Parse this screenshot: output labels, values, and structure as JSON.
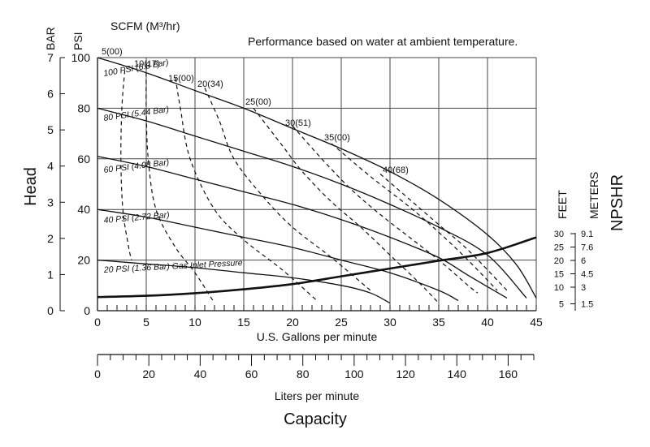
{
  "chart_data": {
    "type": "line",
    "note": "Performance based on water at ambient temperature.",
    "x_axis": {
      "label": "U.S. Gallons per minute",
      "min": 0,
      "max": 45,
      "ticks": [
        "0",
        "5",
        "10",
        "15",
        "20",
        "25",
        "30",
        "35",
        "40",
        "45"
      ],
      "minor_step": 1
    },
    "x2_axis": {
      "label": "Liters per minute",
      "min": 0,
      "max": 170,
      "ticks": [
        "0",
        "20",
        "40",
        "60",
        "80",
        "100",
        "120",
        "140",
        "160"
      ],
      "minor_step": 5
    },
    "capacity_label": "Capacity",
    "y_axis": {
      "label": "Head",
      "psi_title": "PSI",
      "bar_title": "BAR",
      "psi_min": 0,
      "psi_max": 100,
      "psi_ticks": [
        "0",
        "20",
        "40",
        "60",
        "80",
        "100"
      ],
      "bar_ticks": [
        "0",
        "1",
        "2",
        "3",
        "4",
        "5",
        "6",
        "7"
      ]
    },
    "npshr_axis": {
      "label": "NPSHR",
      "feet_title": "FEET",
      "meters_title": "METERS",
      "feet_ticks": [
        "30",
        "25",
        "20",
        "15",
        "10",
        "5"
      ],
      "meters_ticks": [
        "9.1",
        "7.6",
        "6",
        "4.5",
        "3",
        "1.5"
      ]
    },
    "scfm_title": "SCFM (M³/hr)",
    "pressure_curves": [
      {
        "name": "100 PSI (6.8 Bar)",
        "points": [
          [
            0,
            100
          ],
          [
            5,
            94
          ],
          [
            10,
            87
          ],
          [
            15,
            80
          ],
          [
            20,
            72
          ],
          [
            25,
            64
          ],
          [
            30,
            55
          ],
          [
            35,
            44
          ],
          [
            40,
            30
          ],
          [
            43,
            18
          ],
          [
            45,
            5
          ]
        ]
      },
      {
        "name": "80 PSI (5.44 Bar)",
        "points": [
          [
            0,
            80
          ],
          [
            5,
            75
          ],
          [
            10,
            69
          ],
          [
            15,
            63
          ],
          [
            20,
            57
          ],
          [
            25,
            50
          ],
          [
            30,
            42
          ],
          [
            35,
            33
          ],
          [
            40,
            22
          ],
          [
            44,
            5
          ]
        ]
      },
      {
        "name": "60 PSI (4.08 Bar)",
        "points": [
          [
            0,
            61
          ],
          [
            5,
            57
          ],
          [
            10,
            52
          ],
          [
            15,
            47
          ],
          [
            20,
            42
          ],
          [
            25,
            36
          ],
          [
            30,
            29
          ],
          [
            35,
            21
          ],
          [
            38,
            14
          ],
          [
            42,
            5
          ]
        ]
      },
      {
        "name": "40 PSI (2.72 Bar)",
        "points": [
          [
            0,
            40
          ],
          [
            5,
            37
          ],
          [
            10,
            33
          ],
          [
            15,
            29
          ],
          [
            20,
            25
          ],
          [
            25,
            20
          ],
          [
            30,
            15
          ],
          [
            35,
            8
          ],
          [
            37,
            4
          ]
        ]
      },
      {
        "name": "20 PSI (1.36 Bar) Gas Inlet Pressure",
        "points": [
          [
            0,
            20
          ],
          [
            5,
            18.5
          ],
          [
            10,
            17
          ],
          [
            15,
            15
          ],
          [
            20,
            13
          ],
          [
            25,
            10
          ],
          [
            28,
            7
          ],
          [
            30,
            3
          ]
        ]
      }
    ],
    "air_curves": [
      {
        "name": "5(00)",
        "points": [
          [
            2.8,
            95
          ],
          [
            2.5,
            80
          ],
          [
            2.4,
            60
          ],
          [
            2.6,
            40
          ],
          [
            3.2,
            25
          ],
          [
            3.5,
            20
          ]
        ]
      },
      {
        "name": "10(17)",
        "points": [
          [
            5,
            97
          ],
          [
            5,
            80
          ],
          [
            5.2,
            60
          ],
          [
            6,
            40
          ],
          [
            8,
            25
          ],
          [
            10,
            15
          ],
          [
            12,
            3
          ]
        ]
      },
      {
        "name": "15(00)",
        "points": [
          [
            8,
            92
          ],
          [
            8.5,
            80
          ],
          [
            9.5,
            60
          ],
          [
            12,
            40
          ],
          [
            15,
            28
          ],
          [
            19,
            16
          ],
          [
            22.5,
            4
          ]
        ]
      },
      {
        "name": "20(34)",
        "points": [
          [
            11,
            88
          ],
          [
            12.5,
            75
          ],
          [
            14,
            60
          ],
          [
            17,
            45
          ],
          [
            20,
            33
          ],
          [
            24,
            21
          ],
          [
            28,
            8
          ]
        ]
      },
      {
        "name": "25(00)",
        "points": [
          [
            16,
            80
          ],
          [
            19,
            65
          ],
          [
            21,
            55
          ],
          [
            24,
            43
          ],
          [
            27,
            33
          ],
          [
            30,
            22
          ],
          [
            33,
            11
          ],
          [
            35,
            3
          ]
        ]
      },
      {
        "name": "30(51)",
        "points": [
          [
            20,
            73
          ],
          [
            23,
            60
          ],
          [
            26,
            48
          ],
          [
            29,
            38
          ],
          [
            32,
            29
          ],
          [
            35,
            20
          ],
          [
            38,
            10
          ],
          [
            39,
            7
          ]
        ]
      },
      {
        "name": "35(00)",
        "points": [
          [
            24,
            66
          ],
          [
            28,
            53
          ],
          [
            32,
            41
          ],
          [
            35,
            31
          ],
          [
            38,
            20
          ],
          [
            41,
            8
          ]
        ]
      },
      {
        "name": "40(68)",
        "points": [
          [
            29,
            54
          ],
          [
            32,
            44
          ],
          [
            35,
            34
          ],
          [
            38,
            24
          ],
          [
            42,
            8
          ]
        ]
      }
    ],
    "npshr_curve": {
      "points": [
        [
          0,
          4
        ],
        [
          5,
          4.5
        ],
        [
          10,
          5.5
        ],
        [
          15,
          7
        ],
        [
          20,
          9
        ],
        [
          25,
          12
        ],
        [
          30,
          15
        ],
        [
          35,
          18
        ],
        [
          40,
          21
        ],
        [
          45,
          27
        ]
      ]
    }
  }
}
